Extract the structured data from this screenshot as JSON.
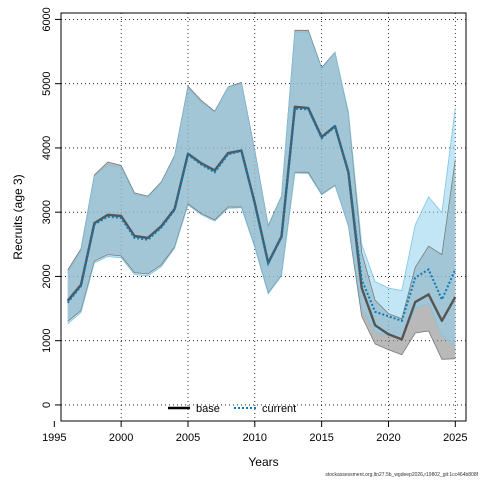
{
  "chart_data": {
    "type": "line",
    "title": "",
    "xlabel": "Years",
    "ylabel": "Recruits (age 3)",
    "xlim": [
      1995.5,
      2025.8
    ],
    "ylim": [
      -250,
      6100
    ],
    "x_ticks": [
      1995,
      2000,
      2005,
      2010,
      2015,
      2020,
      2025
    ],
    "y_ticks": [
      0,
      1000,
      2000,
      3000,
      4000,
      5000,
      6000
    ],
    "grid": true,
    "legend_position": "bottom-center",
    "x": [
      1996,
      1997,
      1998,
      1999,
      2000,
      2001,
      2002,
      2003,
      2004,
      2005,
      2006,
      2007,
      2008,
      2009,
      2010,
      2011,
      2012,
      2013,
      2014,
      2015,
      2016,
      2017,
      2018,
      2019,
      2020,
      2021,
      2022,
      2023,
      2024,
      2025
    ],
    "series": [
      {
        "name": "base",
        "color": "#000000",
        "line_style": "solid",
        "band_color": "#8a8a8a",
        "values": [
          1620,
          1870,
          2830,
          2960,
          2940,
          2630,
          2600,
          2780,
          3050,
          3910,
          3760,
          3650,
          3920,
          3960,
          3140,
          2210,
          2620,
          4640,
          4620,
          4170,
          4340,
          3620,
          1820,
          1240,
          1100,
          1020,
          1600,
          1720,
          1310,
          1680
        ],
        "lower": [
          1300,
          1470,
          2240,
          2340,
          2320,
          2060,
          2040,
          2180,
          2460,
          3130,
          2980,
          2880,
          3080,
          3080,
          2460,
          1740,
          2020,
          3620,
          3620,
          3280,
          3420,
          2790,
          1380,
          950,
          860,
          780,
          1120,
          1150,
          710,
          720
        ],
        "upper": [
          2100,
          2430,
          3580,
          3780,
          3730,
          3300,
          3250,
          3470,
          3880,
          4960,
          4740,
          4570,
          4950,
          5020,
          3960,
          2790,
          3250,
          5830,
          5830,
          5250,
          5490,
          4540,
          2370,
          1630,
          1420,
          1340,
          2140,
          2470,
          2340,
          3820
        ]
      },
      {
        "name": "current",
        "color": "#0e7bb8",
        "line_style": "dotted",
        "band_color": "#8fd2ec",
        "values": [
          1590,
          1850,
          2810,
          2930,
          2910,
          2600,
          2570,
          2760,
          3030,
          3900,
          3740,
          3620,
          3900,
          3950,
          3130,
          2200,
          2610,
          4610,
          4600,
          4150,
          4330,
          3640,
          1950,
          1450,
          1380,
          1310,
          1980,
          2110,
          1640,
          2110
        ],
        "lower": [
          1260,
          1440,
          2210,
          2310,
          2290,
          2030,
          2010,
          2150,
          2440,
          3110,
          2960,
          2860,
          3060,
          3070,
          2450,
          1730,
          2010,
          3610,
          3600,
          3270,
          3410,
          2810,
          1510,
          1130,
          1080,
          1020,
          1500,
          1580,
          1080,
          920
        ],
        "upper": [
          2050,
          2400,
          3560,
          3730,
          3700,
          3270,
          3230,
          3450,
          3860,
          4930,
          4710,
          4550,
          4940,
          5000,
          3940,
          2770,
          3240,
          5800,
          5800,
          5230,
          5480,
          4560,
          2500,
          1920,
          1820,
          1780,
          2800,
          3240,
          2990,
          4620
        ]
      }
    ]
  },
  "footer": {
    "source_text": "stockassessment.org,ltn27.5b_wgdeep2026,r19802_git:1cc464b808f"
  }
}
